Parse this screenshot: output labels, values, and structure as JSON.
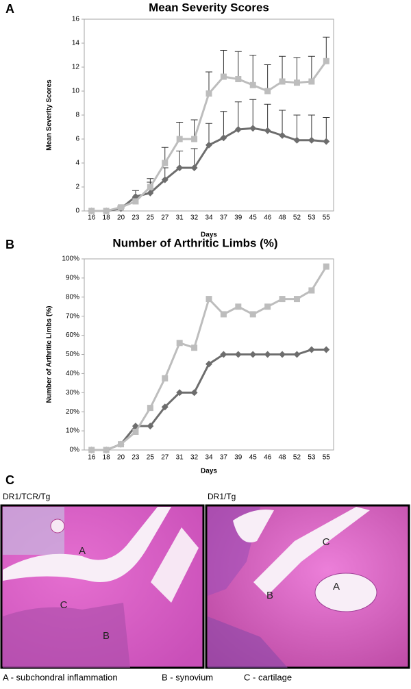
{
  "chart_data": [
    {
      "type": "line",
      "panel": "A",
      "title": "Mean Severity Scores",
      "x_label": "Days",
      "y_label": "Mean Severity Scores",
      "categories": [
        "16",
        "18",
        "20",
        "23",
        "25",
        "27",
        "31",
        "32",
        "34",
        "37",
        "39",
        "45",
        "46",
        "48",
        "52",
        "53",
        "55"
      ],
      "ylim": [
        0,
        16
      ],
      "yticks": [
        0,
        2,
        4,
        6,
        8,
        10,
        12,
        14,
        16
      ],
      "grid": false,
      "series": [
        {
          "color": "#6d6d6d",
          "marker": "diamond",
          "values": [
            0,
            0,
            0.2,
            1.2,
            1.5,
            2.6,
            3.6,
            3.6,
            5.5,
            6.1,
            6.8,
            6.9,
            6.7,
            6.3,
            5.9,
            5.9,
            5.8
          ],
          "errors": [
            0,
            0,
            0.1,
            0.5,
            0.9,
            1.0,
            1.4,
            1.6,
            1.8,
            2.2,
            2.3,
            2.4,
            2.2,
            2.1,
            2.1,
            2.1,
            2.0
          ]
        },
        {
          "color": "#bdbdbd",
          "marker": "square",
          "values": [
            0,
            0,
            0.3,
            0.8,
            2.0,
            4.0,
            6.0,
            6.0,
            9.8,
            11.2,
            11.0,
            10.5,
            10.0,
            10.8,
            10.7,
            10.8,
            12.5
          ],
          "errors": [
            0,
            0,
            0.1,
            0.3,
            0.7,
            1.3,
            1.4,
            1.6,
            1.8,
            2.2,
            2.3,
            2.5,
            2.2,
            2.1,
            2.1,
            2.1,
            2.0
          ]
        }
      ]
    },
    {
      "type": "line",
      "panel": "B",
      "title": "Number of Arthritic Limbs (%)",
      "x_label": "Days",
      "y_label": "Number of Arthritic Limbs (%)",
      "categories": [
        "16",
        "18",
        "20",
        "23",
        "25",
        "27",
        "31",
        "32",
        "34",
        "37",
        "39",
        "45",
        "46",
        "48",
        "52",
        "53",
        "55"
      ],
      "ylim": [
        0,
        100
      ],
      "yticks": [
        {
          "value": 0,
          "label": "0%"
        },
        {
          "value": 10,
          "label": "10%"
        },
        {
          "value": 20,
          "label": "20%"
        },
        {
          "value": 30,
          "label": "30%"
        },
        {
          "value": 40,
          "label": "40%"
        },
        {
          "value": 50,
          "label": "50%"
        },
        {
          "value": 60,
          "label": "60%"
        },
        {
          "value": 70,
          "label": "70%"
        },
        {
          "value": 80,
          "label": "80%"
        },
        {
          "value": 90,
          "label": "90%"
        },
        {
          "value": 100,
          "label": "100%"
        }
      ],
      "grid": false,
      "series": [
        {
          "color": "#6d6d6d",
          "marker": "diamond",
          "values": [
            0,
            0,
            3,
            12.5,
            12.5,
            22.5,
            30,
            30,
            45,
            50,
            50,
            50,
            50,
            50,
            50,
            52.5,
            52.5
          ]
        },
        {
          "color": "#bdbdbd",
          "marker": "square",
          "values": [
            0,
            0,
            3,
            9.5,
            22,
            37.5,
            56,
            53.5,
            79,
            71,
            75,
            71,
            75,
            79,
            79,
            83.5,
            96
          ]
        }
      ]
    }
  ],
  "histology": {
    "panel": "C",
    "images": [
      {
        "title": "DR1/TCR/Tg",
        "labels": [
          "A",
          "C",
          "B"
        ]
      },
      {
        "title": "DR1/Tg",
        "labels": [
          "C",
          "B",
          "A"
        ]
      }
    ],
    "caption": [
      "A - subchondral inflammation",
      "B - synovium",
      "C - cartilage"
    ]
  }
}
